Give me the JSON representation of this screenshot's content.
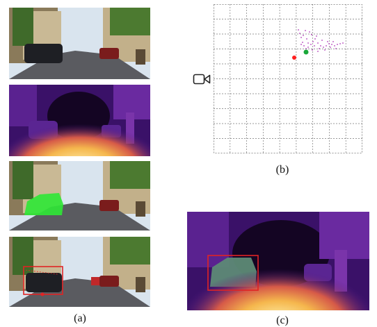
{
  "captions": {
    "a": "(a)",
    "b": "(b)",
    "c": "(c)"
  },
  "colors": {
    "depth_dark": "#140523",
    "depth_purple": "#4f1a86",
    "depth_orange": "#f08a3a",
    "depth_yellow": "#fff6b8",
    "segmentation_green": "#2ee835",
    "bbox_red": "#e02424",
    "point_purple": "#b03ab8",
    "point_red": "#ff2020",
    "point_green": "#1aa83a",
    "grid_line": "#777777"
  },
  "icons": {
    "camera": "video-camera-icon"
  }
}
